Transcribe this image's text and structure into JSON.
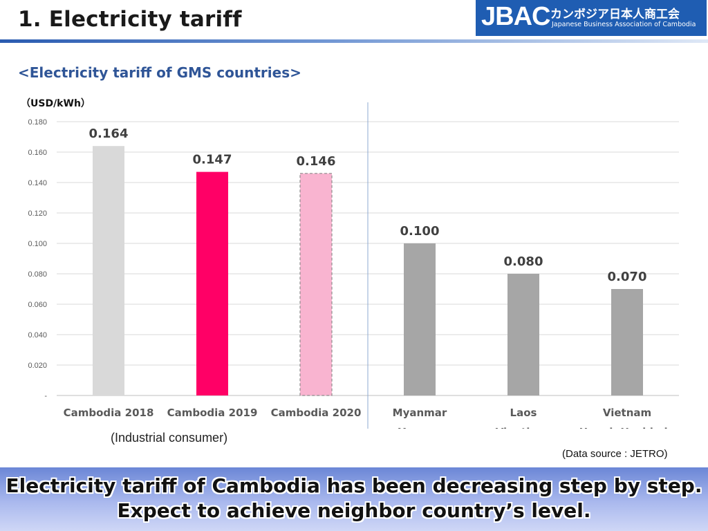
{
  "header": {
    "title": "1. Electricity tariff"
  },
  "logo": {
    "mark": "JBAC",
    "jp": "カンボジア日本人商工会",
    "en": "Japanese Business Association of Cambodia"
  },
  "subtitle": "<Electricity tariff of GMS countries>",
  "unit": "（USD/kWh）",
  "group_note": "(Industrial consumer)",
  "source": "(Data source : JETRO)",
  "banner": {
    "line1": "Electricity tariff of Cambodia has been decreasing step by step.",
    "line2": "Expect to achieve neighbor country’s level."
  },
  "colors": {
    "accent": "#2f5597",
    "cambodia2018": "#d9d9d9",
    "cambodia2019": "#ff0066",
    "cambodia2020": "#f9b4d0",
    "others": "#a6a6a6"
  },
  "chart_data": {
    "type": "bar",
    "categories": [
      [
        "Cambodia 2018"
      ],
      [
        "Cambodia 2019"
      ],
      [
        "Cambodia 2020"
      ],
      [
        "Myanmar",
        "Yangon"
      ],
      [
        "Laos",
        "Vientiane"
      ],
      [
        "Vietnam",
        "Hanoi, Hochimin"
      ]
    ],
    "values": [
      0.164,
      0.147,
      0.146,
      0.1,
      0.08,
      0.07
    ],
    "value_labels": [
      "0.164",
      "0.147",
      "0.146",
      "0.100",
      "0.080",
      "0.070"
    ],
    "bar_colors": [
      "#d9d9d9",
      "#ff0066",
      "#f9b4d0",
      "#a6a6a6",
      "#a6a6a6",
      "#a6a6a6"
    ],
    "dashed_bar_index": 2,
    "ylim": [
      0,
      0.18
    ],
    "yticks": [
      0,
      0.02,
      0.04,
      0.06,
      0.08,
      0.1,
      0.12,
      0.14,
      0.16,
      0.18
    ],
    "ytick_labels": [
      "-",
      "0.020",
      "0.040",
      "0.060",
      "0.080",
      "0.100",
      "0.120",
      "0.140",
      "0.160",
      "0.180"
    ],
    "grid": true,
    "ylabel": "（USD/kWh）"
  }
}
